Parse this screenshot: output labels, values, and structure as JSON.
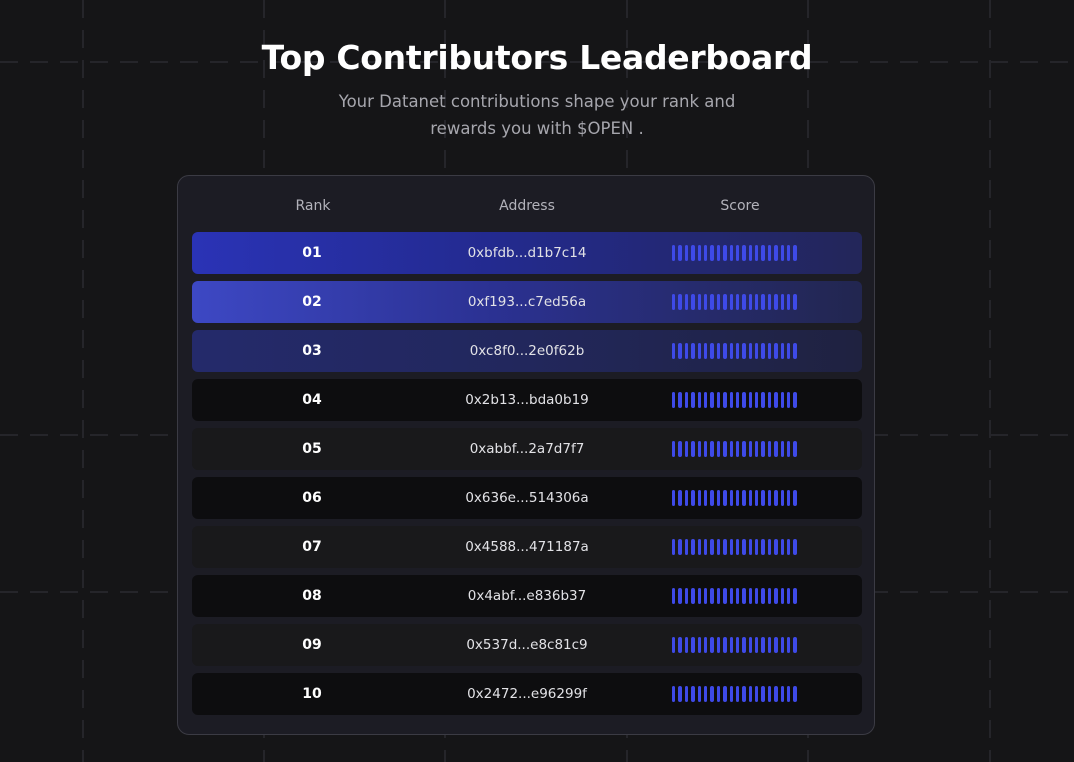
{
  "hero": {
    "title": "Top Contributors Leaderboard",
    "subtitle": "Your Datanet contributions shape your rank and rewards you with $OPEN ."
  },
  "table": {
    "headers": {
      "rank": "Rank",
      "address": "Address",
      "score": "Score"
    },
    "rows": [
      {
        "rank": "01",
        "address": "0xbfdb...d1b7c14",
        "score_bars": 20
      },
      {
        "rank": "02",
        "address": "0xf193...c7ed56a",
        "score_bars": 20
      },
      {
        "rank": "03",
        "address": "0xc8f0...2e0f62b",
        "score_bars": 20
      },
      {
        "rank": "04",
        "address": "0x2b13...bda0b19",
        "score_bars": 20
      },
      {
        "rank": "05",
        "address": "0xabbf...2a7d7f7",
        "score_bars": 20
      },
      {
        "rank": "06",
        "address": "0x636e...514306a",
        "score_bars": 20
      },
      {
        "rank": "07",
        "address": "0x4588...471187a",
        "score_bars": 20
      },
      {
        "rank": "08",
        "address": "0x4abf...e836b37",
        "score_bars": 20
      },
      {
        "rank": "09",
        "address": "0x537d...e8c81c9",
        "score_bars": 20
      },
      {
        "rank": "10",
        "address": "0x2472...e96299f",
        "score_bars": 20
      }
    ]
  },
  "colors": {
    "background": "#151517",
    "score_bar": "#3e4ae8",
    "accent_top1": "#2a33b6",
    "accent_top2": "#3d48c4",
    "accent_top3": "#242a6b"
  }
}
